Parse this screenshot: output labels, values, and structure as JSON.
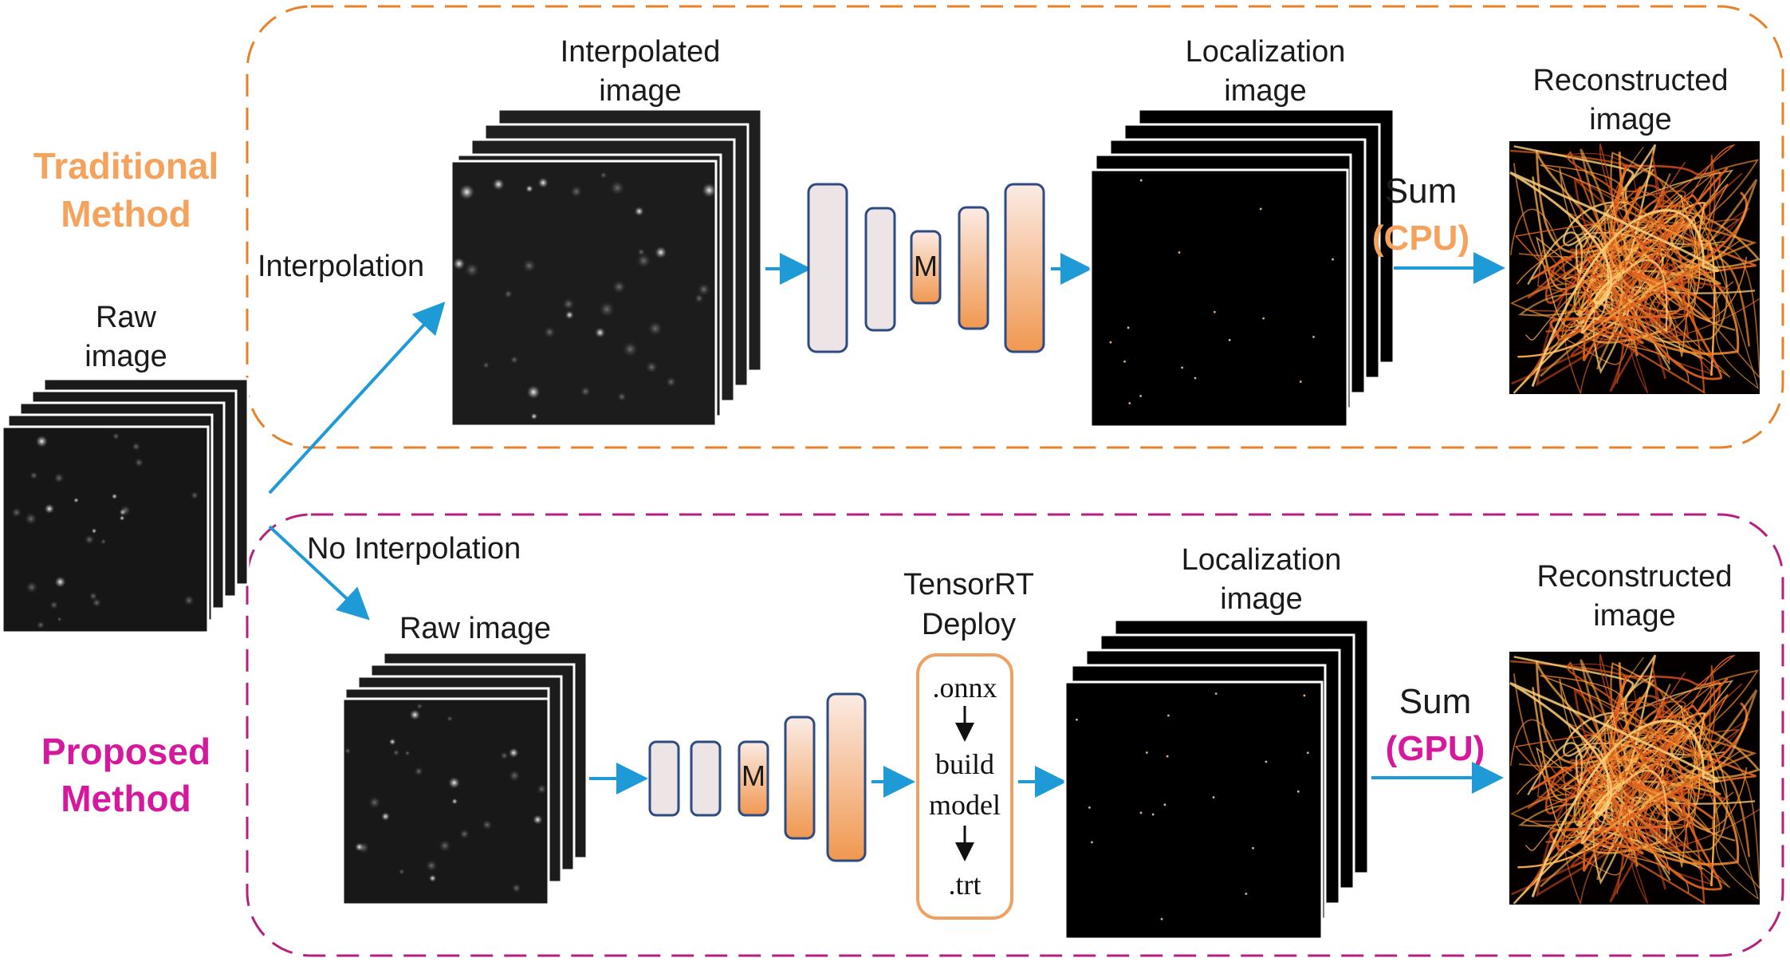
{
  "traditional": {
    "label_line1": "Traditional",
    "label_line2": "Method",
    "color": "#F5A25D",
    "interpolation_label": "Interpolation",
    "interp_image_line1": "Interpolated",
    "interp_image_line2": "image",
    "loc_image_line1": "Localization",
    "loc_image_line2": "image",
    "sum_label": "Sum",
    "sum_device": "(CPU)",
    "recon_line1": "Reconstructed",
    "recon_line2": "image",
    "network_bottleneck": "M"
  },
  "raw_input": {
    "line1": "Raw",
    "line2": "image"
  },
  "proposed": {
    "label_line1": "Proposed",
    "label_line2": "Method",
    "color": "#D6189E",
    "no_interp_label": "No Interpolation",
    "raw_image_label": "Raw image",
    "network_bottleneck": "M",
    "tensorrt_line1": "TensorRT",
    "tensorrt_line2": "Deploy",
    "steps": [
      ".onnx",
      "build",
      "model",
      ".trt"
    ],
    "loc_image_line1": "Localization",
    "loc_image_line2": "image",
    "sum_label": "Sum",
    "sum_device": "(GPU)",
    "recon_line1": "Reconstructed",
    "recon_line2": "image"
  },
  "colors": {
    "arrow": "#1E9AD6",
    "traditional_border": "#E8822A",
    "proposed_border": "#B5207E",
    "network_stroke": "#2D4B82",
    "network_orange": "#F0A060",
    "network_light": "#EDE4E6"
  }
}
